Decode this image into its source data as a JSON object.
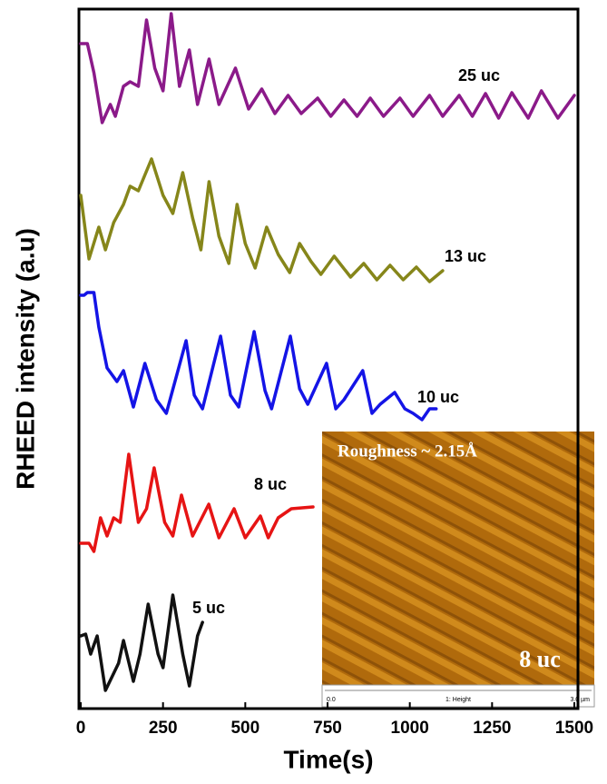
{
  "chart_data": {
    "type": "line",
    "xlabel": "Time(s)",
    "ylabel": "RHEED intensity (a.u)",
    "xlim": [
      0,
      1500
    ],
    "xticks": [
      0,
      250,
      500,
      750,
      1000,
      1250,
      1500
    ],
    "ylim": [
      0,
      770
    ],
    "series": [
      {
        "name": "25 uc",
        "color": "#8b1a89",
        "x": [
          0,
          20,
          40,
          65,
          90,
          105,
          130,
          150,
          175,
          200,
          225,
          250,
          275,
          300,
          330,
          355,
          390,
          420,
          470,
          510,
          550,
          590,
          630,
          670,
          720,
          760,
          800,
          840,
          880,
          920,
          970,
          1010,
          1060,
          1100,
          1150,
          1190,
          1230,
          1270,
          1310,
          1360,
          1400,
          1450,
          1500
        ],
        "values": [
          732,
          732,
          700,
          645,
          665,
          652,
          685,
          690,
          685,
          758,
          705,
          680,
          765,
          685,
          725,
          665,
          715,
          665,
          705,
          660,
          682,
          655,
          675,
          655,
          672,
          652,
          670,
          652,
          672,
          652,
          672,
          652,
          675,
          652,
          675,
          652,
          677,
          650,
          678,
          650,
          680,
          650,
          675
        ]
      },
      {
        "name": "13 uc",
        "color": "#86861a",
        "x": [
          0,
          25,
          55,
          75,
          100,
          130,
          150,
          175,
          215,
          250,
          280,
          310,
          340,
          365,
          390,
          420,
          450,
          475,
          500,
          530,
          565,
          600,
          635,
          665,
          700,
          730,
          770,
          820,
          860,
          900,
          940,
          980,
          1020,
          1060,
          1100
        ],
        "values": [
          565,
          495,
          530,
          505,
          535,
          555,
          575,
          570,
          605,
          565,
          545,
          590,
          540,
          505,
          580,
          520,
          490,
          555,
          512,
          485,
          530,
          500,
          480,
          512,
          492,
          478,
          498,
          475,
          490,
          472,
          488,
          472,
          486,
          470,
          482
        ]
      },
      {
        "name": "10 uc",
        "color": "#1414e6",
        "x": [
          0,
          10,
          20,
          40,
          55,
          80,
          110,
          130,
          160,
          195,
          230,
          260,
          320,
          345,
          370,
          425,
          455,
          480,
          527,
          560,
          580,
          637,
          665,
          690,
          747,
          775,
          800,
          857,
          885,
          910,
          954,
          985,
          1010,
          1037,
          1060,
          1080
        ],
        "values": [
          455,
          455,
          458,
          458,
          420,
          375,
          360,
          372,
          332,
          380,
          340,
          325,
          405,
          345,
          330,
          410,
          345,
          332,
          415,
          350,
          330,
          410,
          352,
          335,
          380,
          330,
          340,
          372,
          325,
          335,
          348,
          330,
          325,
          318,
          330,
          330
        ]
      },
      {
        "name": "8 uc",
        "color": "#e61414",
        "x": [
          0,
          25,
          40,
          60,
          80,
          100,
          120,
          146,
          175,
          200,
          223,
          255,
          280,
          306,
          340,
          389,
          420,
          466,
          500,
          546,
          570,
          600,
          640,
          706
        ],
        "values": [
          182,
          182,
          173,
          210,
          190,
          210,
          205,
          280,
          205,
          220,
          265,
          205,
          190,
          235,
          190,
          225,
          188,
          220,
          188,
          212,
          188,
          210,
          220,
          222
        ]
      },
      {
        "name": "5 uc",
        "color": "#111111",
        "x": [
          0,
          15,
          30,
          50,
          75,
          115,
          130,
          160,
          180,
          205,
          235,
          250,
          280,
          310,
          330,
          355,
          370
        ],
        "values": [
          80,
          82,
          60,
          80,
          20,
          50,
          75,
          30,
          60,
          115,
          60,
          45,
          125,
          60,
          25,
          80,
          95
        ]
      }
    ],
    "inset": {
      "caption": "Roughness ~ 2.15Å",
      "sample": "8 uc",
      "scale_start": "0.0",
      "channel": "1: Height",
      "scale_end": "3.0 µm"
    }
  }
}
